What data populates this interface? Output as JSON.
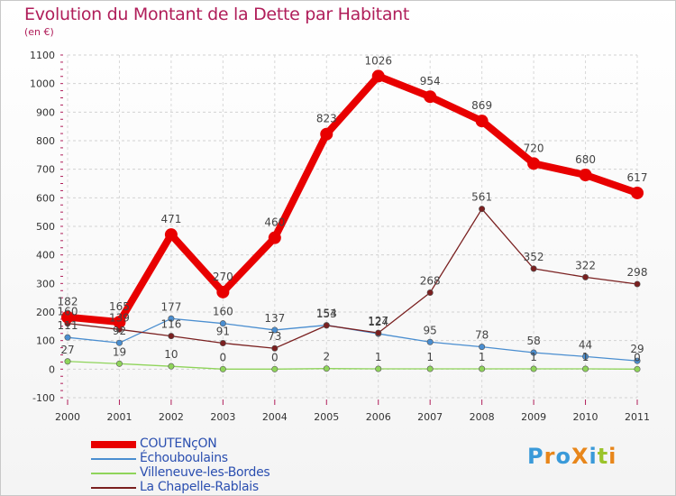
{
  "header": {
    "title": "Evolution du Montant de la Dette par Habitant",
    "unit": "(en €)"
  },
  "logo": {
    "text": "ProXiti",
    "colors": [
      "#3a9ad9",
      "#e8861a",
      "#3a9ad9",
      "#e8861a",
      "#3a9ad9",
      "#9bc42b",
      "#e8861a"
    ]
  },
  "chart_data": {
    "type": "line",
    "title": "Evolution du Montant de la Dette par Habitant",
    "ylabel": "(en €)",
    "xlabel": "",
    "categories": [
      "2000",
      "2001",
      "2002",
      "2003",
      "2004",
      "2005",
      "2006",
      "2007",
      "2008",
      "2009",
      "2010",
      "2011"
    ],
    "ylim": [
      -100,
      1100
    ],
    "yticks": [
      "-100",
      "0",
      "100",
      "200",
      "300",
      "400",
      "500",
      "600",
      "700",
      "800",
      "900",
      "1000",
      "1100"
    ],
    "ytick_values": [
      -100,
      0,
      100,
      200,
      300,
      400,
      500,
      600,
      700,
      800,
      900,
      1000,
      1100
    ],
    "grid": "horizontal dashed",
    "legend_position": "bottom-left",
    "series": [
      {
        "name": "COUTENçON",
        "color": "#e80000",
        "values": [
          182,
          165,
          471,
          270,
          460,
          823,
          1026,
          954,
          869,
          720,
          680,
          617
        ],
        "labels": [
          "182",
          "165",
          "471",
          "270",
          "460",
          "823",
          "1026",
          "954",
          "869",
          "720",
          "680",
          "617"
        ],
        "thick": true
      },
      {
        "name": "Échouboulains",
        "color": "#4a8ed0",
        "values": [
          111,
          92,
          177,
          160,
          137,
          154,
          124,
          95,
          78,
          58,
          44,
          29
        ],
        "labels": [
          "111",
          "92",
          "177",
          "160",
          "137",
          "154",
          "124",
          "95",
          "78",
          "58",
          "44",
          "29"
        ],
        "thick": false
      },
      {
        "name": "Villeneuve-les-Bordes",
        "color": "#8fd45a",
        "values": [
          27,
          19,
          10,
          0,
          0,
          2,
          1,
          1,
          1,
          1,
          1,
          0
        ],
        "labels": [
          "27",
          "19",
          "10",
          "0",
          "0",
          "2",
          "1",
          "1",
          "1",
          "1",
          "1",
          "0"
        ],
        "thick": false
      },
      {
        "name": "La Chapelle-Rablais",
        "color": "#7a2020",
        "values": [
          160,
          139,
          116,
          91,
          73,
          153,
          127,
          268,
          561,
          352,
          322,
          298
        ],
        "labels": [
          "160",
          "139",
          "116",
          "91",
          "73",
          "153",
          "127",
          "268",
          "561",
          "352",
          "322",
          "298"
        ],
        "thick": false
      }
    ]
  }
}
